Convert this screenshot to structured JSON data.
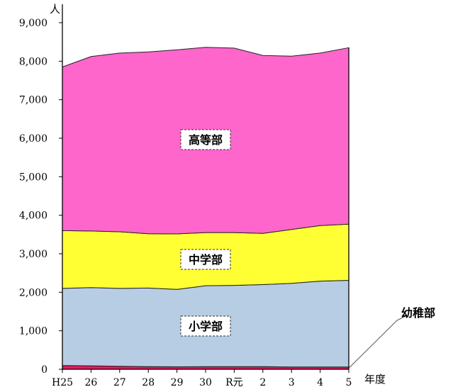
{
  "chart_data": {
    "type": "area",
    "stacked": true,
    "y_unit": "人",
    "x_unit": "年度",
    "ylim": [
      0,
      9000
    ],
    "y_ticks": [
      "0",
      "1,000",
      "2,000",
      "3,000",
      "4,000",
      "5,000",
      "6,000",
      "7,000",
      "8,000",
      "9,000"
    ],
    "categories": [
      "H25",
      "26",
      "27",
      "28",
      "29",
      "30",
      "R元",
      "2",
      "3",
      "4",
      "5"
    ],
    "series": [
      {
        "name": "幼稚部",
        "color": "#e8175d",
        "values": [
          100,
          90,
          80,
          70,
          65,
          70,
          70,
          70,
          60,
          60,
          60
        ]
      },
      {
        "name": "小学部",
        "color": "#b7cde4",
        "values": [
          2000,
          2030,
          2020,
          2040,
          2010,
          2100,
          2110,
          2130,
          2170,
          2230,
          2250
        ]
      },
      {
        "name": "中学部",
        "color": "#ffff33",
        "values": [
          1500,
          1470,
          1470,
          1410,
          1440,
          1380,
          1370,
          1330,
          1400,
          1440,
          1460
        ]
      },
      {
        "name": "高等部",
        "color": "#ff66cc",
        "values": [
          4250,
          4530,
          4640,
          4720,
          4780,
          4810,
          4790,
          4620,
          4500,
          4480,
          4580
        ]
      }
    ]
  }
}
